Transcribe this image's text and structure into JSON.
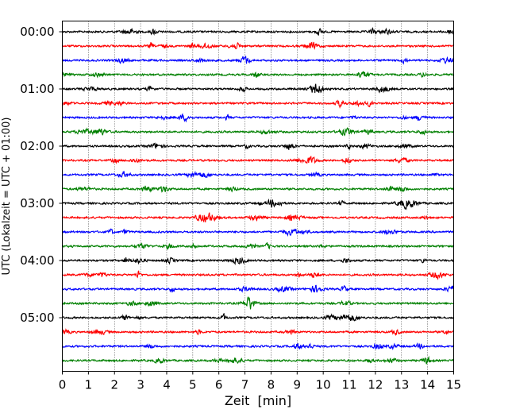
{
  "chart_data": {
    "type": "line",
    "title": "",
    "xlabel": "Zeit  [min]",
    "ylabel": "UTC (Lokalzeit = UTC + 01:00)",
    "xlim": [
      0,
      15
    ],
    "x_ticks": [
      0,
      1,
      2,
      3,
      4,
      5,
      6,
      7,
      8,
      9,
      10,
      11,
      12,
      13,
      14,
      15
    ],
    "y_tick_labels": [
      "00:00",
      "01:00",
      "02:00",
      "03:00",
      "04:00",
      "05:00"
    ],
    "grid": "vertical dotted",
    "trace_colors": [
      "#000000",
      "#ff0000",
      "#0000ff",
      "#008000"
    ],
    "series": [
      {
        "label": "00:00",
        "color": "#000000"
      },
      {
        "label": "00:15",
        "color": "#ff0000"
      },
      {
        "label": "00:30",
        "color": "#0000ff"
      },
      {
        "label": "00:45",
        "color": "#008000"
      },
      {
        "label": "01:00",
        "color": "#000000"
      },
      {
        "label": "01:15",
        "color": "#ff0000"
      },
      {
        "label": "01:30",
        "color": "#0000ff"
      },
      {
        "label": "01:45",
        "color": "#008000"
      },
      {
        "label": "02:00",
        "color": "#000000"
      },
      {
        "label": "02:15",
        "color": "#ff0000"
      },
      {
        "label": "02:30",
        "color": "#0000ff"
      },
      {
        "label": "02:45",
        "color": "#008000"
      },
      {
        "label": "03:00",
        "color": "#000000"
      },
      {
        "label": "03:15",
        "color": "#ff0000"
      },
      {
        "label": "03:30",
        "color": "#0000ff"
      },
      {
        "label": "03:45",
        "color": "#008000"
      },
      {
        "label": "04:00",
        "color": "#000000"
      },
      {
        "label": "04:15",
        "color": "#ff0000"
      },
      {
        "label": "04:30",
        "color": "#0000ff"
      },
      {
        "label": "04:45",
        "color": "#008000"
      },
      {
        "label": "05:00",
        "color": "#000000"
      },
      {
        "label": "05:15",
        "color": "#ff0000"
      },
      {
        "label": "05:30",
        "color": "#0000ff"
      },
      {
        "label": "05:45",
        "color": "#008000"
      }
    ]
  }
}
